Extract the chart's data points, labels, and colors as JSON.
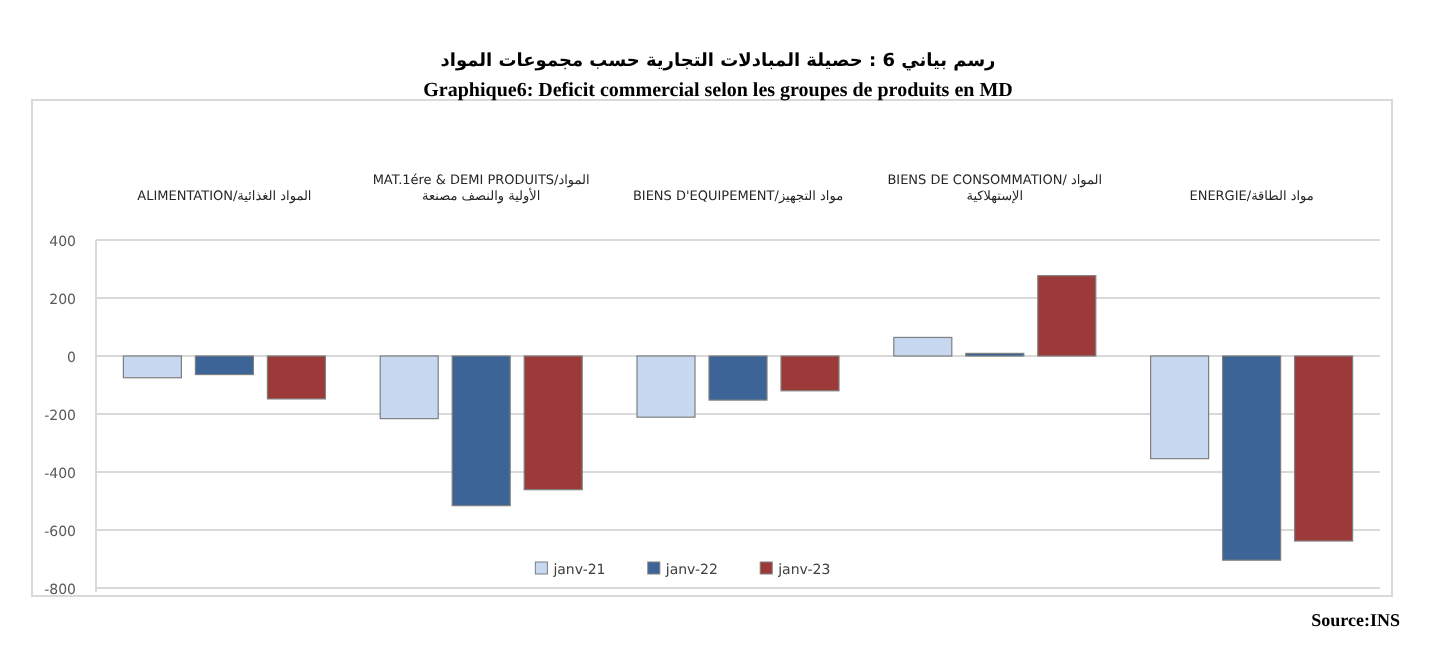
{
  "chart_data": {
    "type": "bar",
    "title": "رسم بياني 6 : حصيلة المبادلات التجارية حسب مجموعات المواد",
    "subtitle": "Graphique6: Deficit commercial selon les groupes de produits en MD",
    "categories": [
      "ALIMENTATION/المواد الغذائية",
      "MAT.1ére & DEMI PRODUITS/المواد الأولية والنصف مصنعة",
      "BIENS D'EQUIPEMENT/مواد التجهيز",
      "BIENS DE CONSOMMATION/ المواد الإستهلاكية",
      "ENERGIE/مواد الطاقة"
    ],
    "series": [
      {
        "name": "janv-21",
        "color": "#c6d9f1",
        "values": [
          -75,
          -216,
          -211,
          64,
          -354
        ]
      },
      {
        "name": "janv-22",
        "color": "#3c6496",
        "values": [
          -64,
          -516,
          -152,
          9,
          -704
        ]
      },
      {
        "name": "janv-23",
        "color": "#9c3a3a",
        "values": [
          -148,
          -461,
          -120,
          277,
          -638
        ]
      }
    ],
    "ylim": [
      -800,
      400
    ],
    "yticks": [
      -800,
      -600,
      -400,
      -200,
      0,
      200,
      400
    ],
    "grid": "y",
    "legend": "bottom",
    "annotations": [
      "Source:INS"
    ]
  }
}
